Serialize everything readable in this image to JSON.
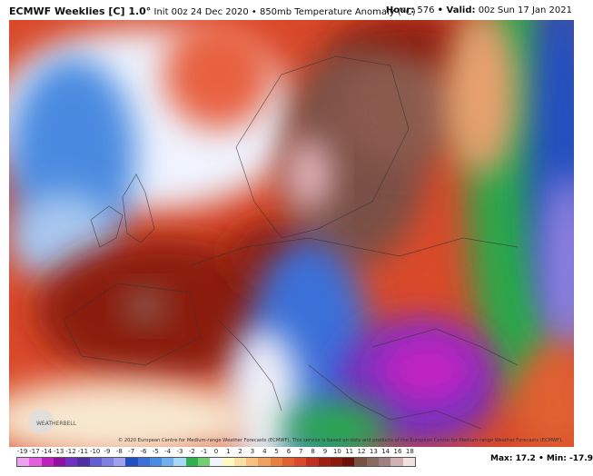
{
  "header": {
    "title": "ECMWF Weeklies [C] 1.0°",
    "subtitle": "Init 00z 24 Dec 2020 • 850mb Temperature Anomaly (°C)",
    "hour_label": "Hour:",
    "hour": "576",
    "valid_label": "• Valid:",
    "valid": "00z Sun 17 Jan 2021"
  },
  "map": {
    "logo": "WEATHERBELL",
    "copyright": "© 2020 European Centre for Medium-range Weather Forecasts (ECMWF). This service is based on data and products of the European Centre for Medium-range Weather Forecasts (ECMWF)."
  },
  "colorbar": {
    "labels": [
      -19,
      -17,
      -14,
      -13,
      -12,
      -11,
      -10,
      -9,
      -8,
      -7,
      -6,
      -5,
      -4,
      -3,
      -2,
      -1,
      0,
      1,
      2,
      3,
      4,
      5,
      6,
      7,
      8,
      9,
      10,
      11,
      12,
      13,
      14,
      16,
      18
    ]
  },
  "footer": {
    "max_label": "Max:",
    "max": 17.2,
    "min_label": "• Min:",
    "min": -17.9
  }
}
